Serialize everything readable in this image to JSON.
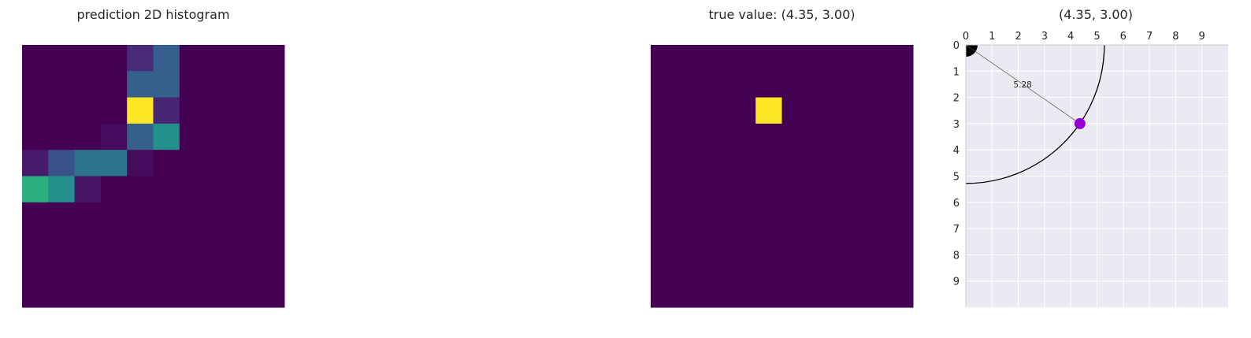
{
  "chart_data": [
    {
      "type": "heatmap",
      "title": "prediction 2D histogram",
      "grid_size": [
        10,
        10
      ],
      "colormap": "viridis",
      "axes_visible": false,
      "values": [
        [
          0,
          0,
          0,
          0,
          0.12,
          0.3,
          0,
          0,
          0,
          0
        ],
        [
          0,
          0,
          0,
          0,
          0.3,
          0.3,
          0,
          0,
          0,
          0
        ],
        [
          0,
          0,
          0,
          0,
          1.0,
          0.1,
          0,
          0,
          0,
          0
        ],
        [
          0,
          0,
          0,
          0.03,
          0.3,
          0.5,
          0,
          0,
          0,
          0
        ],
        [
          0.07,
          0.25,
          0.38,
          0.38,
          0.03,
          0,
          0,
          0,
          0,
          0
        ],
        [
          0.63,
          0.5,
          0.06,
          0,
          0,
          0,
          0,
          0,
          0,
          0
        ],
        [
          0,
          0,
          0,
          0,
          0,
          0,
          0,
          0,
          0,
          0
        ],
        [
          0,
          0,
          0,
          0,
          0,
          0,
          0,
          0,
          0,
          0
        ],
        [
          0,
          0,
          0,
          0,
          0,
          0,
          0,
          0,
          0,
          0
        ],
        [
          0,
          0,
          0,
          0,
          0,
          0,
          0,
          0,
          0,
          0
        ]
      ]
    },
    {
      "type": "heatmap",
      "title": "true value: (4.35, 3.00)",
      "grid_size": [
        10,
        10
      ],
      "colormap": "viridis",
      "axes_visible": false,
      "hot_cell": {
        "row": 2,
        "col": 4,
        "value": 1
      }
    },
    {
      "type": "scatter",
      "title": "(4.35, 3.00)",
      "xlim": [
        0,
        10
      ],
      "ylim": [
        10,
        0
      ],
      "x_ticks": [
        0,
        1,
        2,
        3,
        4,
        5,
        6,
        7,
        8,
        9
      ],
      "y_ticks": [
        0,
        1,
        2,
        3,
        4,
        5,
        6,
        7,
        8,
        9
      ],
      "x_axis_position": "top",
      "y_inverted": true,
      "grid": true,
      "background": "#eaeaf2",
      "point": {
        "x": 4.35,
        "y": 3.0,
        "color": "#9400d3"
      },
      "radius_line": {
        "from": [
          0,
          0
        ],
        "to": [
          4.35,
          3.0
        ],
        "label": "5.28"
      },
      "arc": {
        "center": [
          0,
          0
        ],
        "radius": 5.28
      },
      "origin_marker": {
        "center": [
          0,
          0
        ],
        "radius": 0.45,
        "color": "#000000"
      }
    }
  ]
}
